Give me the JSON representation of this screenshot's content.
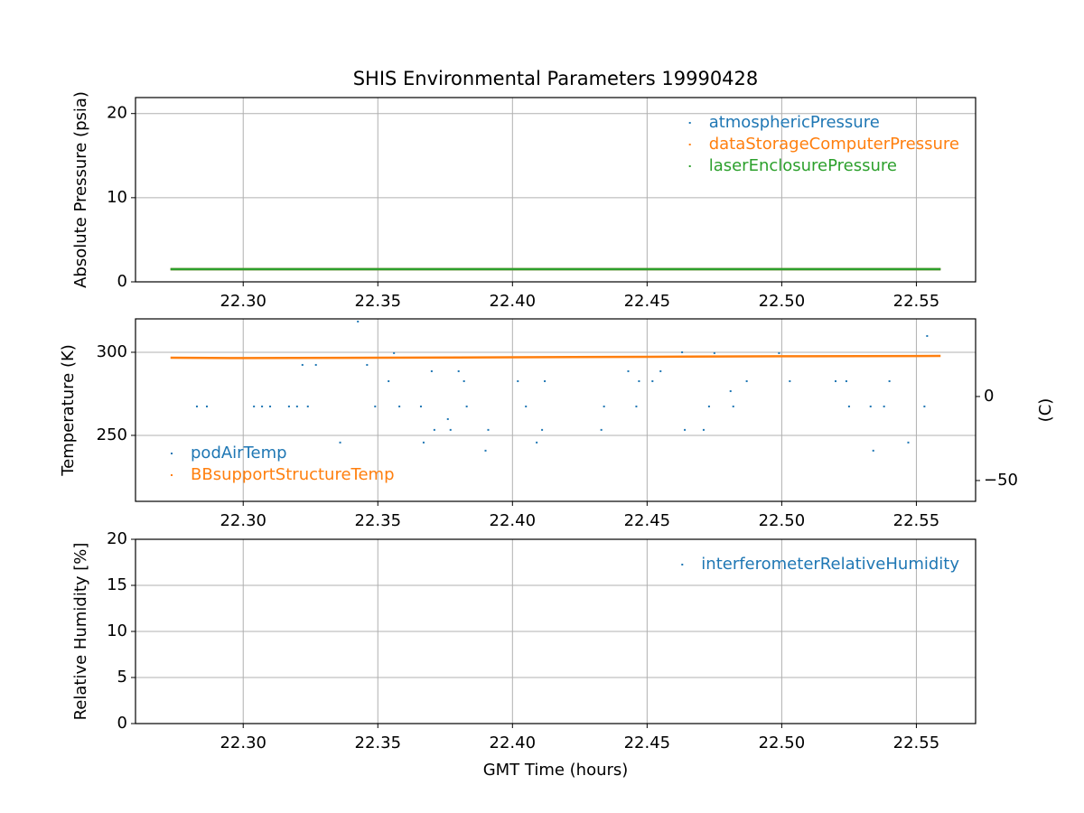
{
  "chart_data": [
    {
      "type": "scatter",
      "title": "SHIS Environmental Parameters 19990428",
      "ylabel": "Absolute Pressure (psia)",
      "xlim": [
        22.26,
        22.572
      ],
      "ylim": [
        0,
        21.9
      ],
      "xticks": [
        {
          "value": 22.3,
          "label": "22.30"
        },
        22.35,
        {
          "value": 22.4,
          "label": "22.40"
        },
        22.45,
        {
          "value": 22.5,
          "label": "22.50"
        },
        22.55
      ],
      "yticks": [
        0,
        10,
        20
      ],
      "grid": true,
      "legend": "upper right",
      "series": [
        {
          "name": "atmosphericPressure",
          "color": "#1f77b4",
          "mode": "line",
          "x": [
            22.273,
            22.3,
            22.35,
            22.4,
            22.45,
            22.5,
            22.559
          ],
          "values": [
            1.5,
            1.5,
            1.5,
            1.5,
            1.5,
            1.5,
            1.5
          ]
        },
        {
          "name": "dataStorageComputerPressure",
          "color": "#ff7f0e",
          "mode": "line",
          "x": [
            22.273,
            22.3,
            22.35,
            22.4,
            22.45,
            22.5,
            22.559
          ],
          "values": [
            1.5,
            1.5,
            1.5,
            1.5,
            1.5,
            1.5,
            1.5
          ]
        },
        {
          "name": "laserEnclosurePressure",
          "color": "#2ca02c",
          "mode": "line",
          "x": [
            22.273,
            22.3,
            22.35,
            22.4,
            22.45,
            22.5,
            22.559
          ],
          "values": [
            1.5,
            1.5,
            1.5,
            1.5,
            1.5,
            1.5,
            1.5
          ]
        }
      ]
    },
    {
      "type": "scatter",
      "ylabel": "Temperature (K)",
      "y2label": "(C)",
      "xlim": [
        22.26,
        22.572
      ],
      "ylim": [
        210.3,
        320.1
      ],
      "y2lim": [
        -62.4,
        46.2
      ],
      "xticks": [
        {
          "value": 22.3,
          "label": "22.30"
        },
        22.35,
        {
          "value": 22.4,
          "label": "22.40"
        },
        22.45,
        {
          "value": 22.5,
          "label": "22.50"
        },
        22.55
      ],
      "yticks": [
        250,
        300
      ],
      "y2ticks": [
        {
          "value": -50,
          "label": "−50"
        },
        0
      ],
      "grid": true,
      "legend": "lower left",
      "series": [
        {
          "name": "podAirTemp",
          "color": "#1f77b4",
          "mode": "points",
          "x": [
            22.2828,
            22.2865,
            22.304,
            22.307,
            22.31,
            22.317,
            22.32,
            22.324,
            22.322,
            22.327,
            22.336,
            22.3426,
            22.346,
            22.349,
            22.354,
            22.356,
            22.358,
            22.366,
            22.367,
            22.37,
            22.371,
            22.376,
            22.377,
            22.38,
            22.382,
            22.383,
            22.39,
            22.391,
            22.402,
            22.405,
            22.409,
            22.411,
            22.412,
            22.433,
            22.434,
            22.443,
            22.446,
            22.447,
            22.452,
            22.455,
            22.463,
            22.464,
            22.471,
            22.473,
            22.475,
            22.481,
            22.482,
            22.487,
            22.499,
            22.503,
            22.52,
            22.524,
            22.525,
            22.533,
            22.534,
            22.538,
            22.54,
            22.547,
            22.553,
            22.554
          ],
          "values": [
            267.4,
            267.4,
            267.4,
            267.4,
            267.4,
            267.4,
            267.4,
            267.4,
            292.4,
            292.4,
            245.7,
            318.5,
            292.4,
            267.4,
            282.6,
            299.5,
            267.4,
            267.4,
            245.7,
            288.6,
            253.3,
            259.8,
            253.3,
            288.6,
            282.6,
            267.4,
            240.8,
            253.3,
            282.6,
            267.4,
            245.7,
            253.3,
            282.6,
            253.3,
            267.4,
            288.6,
            267.4,
            282.6,
            282.6,
            288.6,
            300,
            253.3,
            253.3,
            267.4,
            299.5,
            276.6,
            267.4,
            282.6,
            299.5,
            282.6,
            282.6,
            282.6,
            267.4,
            267.4,
            240.8,
            267.4,
            282.6,
            245.7,
            267.4,
            309.8
          ]
        },
        {
          "name": "BBsupportStructureTemp",
          "color": "#ff7f0e",
          "mode": "line",
          "x": [
            22.273,
            22.3,
            22.35,
            22.4,
            22.45,
            22.5,
            22.559
          ],
          "values": [
            296.7,
            296.5,
            296.7,
            297.0,
            297.3,
            297.6,
            297.8
          ]
        }
      ]
    },
    {
      "type": "scatter",
      "ylabel": "Relative Humidity [%]",
      "xlabel": "GMT Time (hours)",
      "xlim": [
        22.26,
        22.572
      ],
      "ylim": [
        0,
        20
      ],
      "xticks": [
        {
          "value": 22.3,
          "label": "22.30"
        },
        22.35,
        {
          "value": 22.4,
          "label": "22.40"
        },
        22.45,
        {
          "value": 22.5,
          "label": "22.50"
        },
        22.55
      ],
      "yticks": [
        0,
        5,
        10,
        15,
        20
      ],
      "grid": true,
      "legend": "upper right",
      "series": [
        {
          "name": "interferometerRelativeHumidity",
          "color": "#1f77b4",
          "mode": "points",
          "x": [],
          "values": []
        }
      ]
    }
  ]
}
